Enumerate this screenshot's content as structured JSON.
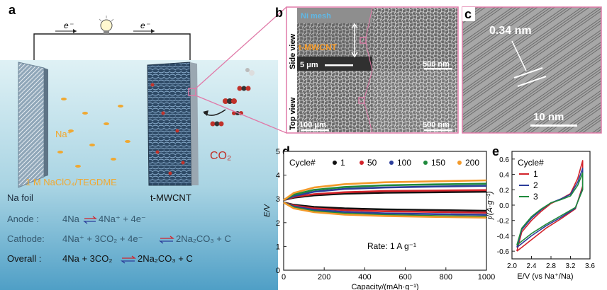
{
  "panel_a": {
    "letter": "a",
    "electron_left": "e⁻",
    "electron_right": "e⁻",
    "na_ion": "Na⁺",
    "co2": "CO₂",
    "electrolyte": "1 M NaClO₄/TEGDME",
    "na_foil": "Na foil",
    "cathode_label": "t-MWCNT",
    "eq_anode_prefix": "Anode   :",
    "eq_anode_left": "4Na",
    "eq_anode_right": "4Na⁺ + 4e⁻",
    "eq_cathode_prefix": "Cathode:",
    "eq_cathode_left": "4Na⁺ + 3CO₂ + 4e⁻",
    "eq_cathode_right": "2Na₂CO₃ + C",
    "eq_overall_prefix": "Overall  :",
    "eq_overall_left": "4Na + 3CO₂",
    "eq_overall_right": "2Na₂CO₃ + C",
    "colors": {
      "bg_top": "#d7eef3",
      "bg_bottom": "#5aa8cc",
      "pink": "#e07aa8",
      "orange": "#f0a830",
      "co2_red": "#c0322a"
    }
  },
  "panel_b": {
    "letter": "b",
    "side_view": "Side view",
    "top_view": "Top view",
    "ni_mesh": "Ni mesh",
    "t_mwcnt": "t-MWCNT",
    "scale_side_left": "5 μm",
    "scale_side_right": "500 nm",
    "scale_top_left": "100 μm",
    "scale_top_right": "500 nm"
  },
  "panel_c": {
    "letter": "c",
    "spacing": "0.34 nm",
    "scale": "10 nm"
  },
  "chart_data": [
    {
      "type": "line",
      "panel": "d",
      "xlabel": "Capacity/(mAh·g⁻¹)",
      "ylabel": "E/V",
      "xlim": [
        0,
        1000
      ],
      "ylim": [
        0,
        5
      ],
      "xticks": [
        0,
        200,
        400,
        600,
        800,
        1000
      ],
      "yticks": [
        0,
        1,
        2,
        3,
        4,
        5
      ],
      "legend_title": "Cycle#",
      "legend_placement": "top",
      "annotation": "Rate: 1 A g⁻¹",
      "series": [
        {
          "name": "1",
          "color": "#111111",
          "charge": [
            [
              0,
              2.95
            ],
            [
              50,
              3.05
            ],
            [
              150,
              3.15
            ],
            [
              300,
              3.22
            ],
            [
              500,
              3.26
            ],
            [
              750,
              3.28
            ],
            [
              1000,
              3.3
            ]
          ],
          "discharge": [
            [
              0,
              2.85
            ],
            [
              50,
              2.75
            ],
            [
              150,
              2.66
            ],
            [
              300,
              2.6
            ],
            [
              500,
              2.56
            ],
            [
              750,
              2.53
            ],
            [
              1000,
              2.5
            ]
          ]
        },
        {
          "name": "50",
          "color": "#d2232a",
          "charge": [
            [
              0,
              2.95
            ],
            [
              50,
              3.08
            ],
            [
              150,
              3.2
            ],
            [
              300,
              3.28
            ],
            [
              500,
              3.33
            ],
            [
              750,
              3.35
            ],
            [
              1000,
              3.37
            ]
          ],
          "discharge": [
            [
              0,
              2.85
            ],
            [
              50,
              2.72
            ],
            [
              150,
              2.6
            ],
            [
              300,
              2.53
            ],
            [
              500,
              2.48
            ],
            [
              750,
              2.45
            ],
            [
              1000,
              2.42
            ]
          ]
        },
        {
          "name": "100",
          "color": "#2b3d9a",
          "charge": [
            [
              0,
              2.95
            ],
            [
              50,
              3.12
            ],
            [
              150,
              3.3
            ],
            [
              300,
              3.42
            ],
            [
              500,
              3.48
            ],
            [
              750,
              3.52
            ],
            [
              1000,
              3.55
            ]
          ],
          "discharge": [
            [
              0,
              2.85
            ],
            [
              50,
              2.68
            ],
            [
              150,
              2.54
            ],
            [
              300,
              2.45
            ],
            [
              500,
              2.39
            ],
            [
              750,
              2.36
            ],
            [
              1000,
              2.33
            ]
          ]
        },
        {
          "name": "150",
          "color": "#1f8a3c",
          "charge": [
            [
              0,
              2.95
            ],
            [
              50,
              3.18
            ],
            [
              150,
              3.38
            ],
            [
              300,
              3.5
            ],
            [
              500,
              3.57
            ],
            [
              750,
              3.61
            ],
            [
              1000,
              3.64
            ]
          ],
          "discharge": [
            [
              0,
              2.85
            ],
            [
              50,
              2.64
            ],
            [
              150,
              2.48
            ],
            [
              300,
              2.38
            ],
            [
              500,
              2.32
            ],
            [
              750,
              2.28
            ],
            [
              1000,
              2.25
            ]
          ]
        },
        {
          "name": "200",
          "color": "#f39a2a",
          "charge": [
            [
              0,
              2.95
            ],
            [
              50,
              3.25
            ],
            [
              150,
              3.48
            ],
            [
              300,
              3.62
            ],
            [
              500,
              3.7
            ],
            [
              750,
              3.74
            ],
            [
              1000,
              3.78
            ]
          ],
          "discharge": [
            [
              0,
              2.85
            ],
            [
              50,
              2.6
            ],
            [
              150,
              2.44
            ],
            [
              300,
              2.34
            ],
            [
              500,
              2.28
            ],
            [
              750,
              2.24
            ],
            [
              1000,
              2.21
            ]
          ]
        }
      ]
    },
    {
      "type": "line",
      "panel": "e",
      "xlabel": "E/V (vs Na⁺/Na)",
      "ylabel": "j/(A·g⁻¹)",
      "xlim": [
        2.0,
        3.6
      ],
      "ylim": [
        -0.7,
        0.7
      ],
      "xticks": [
        2.0,
        2.4,
        2.8,
        3.2,
        3.6
      ],
      "yticks": [
        -0.6,
        -0.4,
        -0.2,
        0.0,
        0.2,
        0.4,
        0.6
      ],
      "legend_title": "Cycle#",
      "series": [
        {
          "name": "1",
          "color": "#d2232a",
          "points": [
            [
              2.1,
              -0.6
            ],
            [
              2.2,
              -0.35
            ],
            [
              2.4,
              -0.2
            ],
            [
              2.6,
              -0.08
            ],
            [
              2.8,
              0.02
            ],
            [
              3.0,
              0.08
            ],
            [
              3.2,
              0.15
            ],
            [
              3.35,
              0.35
            ],
            [
              3.45,
              0.58
            ],
            [
              3.45,
              0.25
            ],
            [
              3.3,
              -0.05
            ],
            [
              3.0,
              -0.18
            ],
            [
              2.7,
              -0.3
            ],
            [
              2.4,
              -0.45
            ],
            [
              2.2,
              -0.55
            ],
            [
              2.1,
              -0.6
            ]
          ]
        },
        {
          "name": "2",
          "color": "#2b3d9a",
          "points": [
            [
              2.1,
              -0.55
            ],
            [
              2.2,
              -0.32
            ],
            [
              2.4,
              -0.17
            ],
            [
              2.6,
              -0.06
            ],
            [
              2.8,
              0.03
            ],
            [
              3.0,
              0.08
            ],
            [
              3.2,
              0.14
            ],
            [
              3.35,
              0.3
            ],
            [
              3.45,
              0.48
            ],
            [
              3.45,
              0.22
            ],
            [
              3.3,
              -0.04
            ],
            [
              3.0,
              -0.16
            ],
            [
              2.7,
              -0.27
            ],
            [
              2.4,
              -0.4
            ],
            [
              2.2,
              -0.5
            ],
            [
              2.1,
              -0.55
            ]
          ]
        },
        {
          "name": "3",
          "color": "#1f8a3c",
          "points": [
            [
              2.1,
              -0.52
            ],
            [
              2.2,
              -0.3
            ],
            [
              2.4,
              -0.15
            ],
            [
              2.6,
              -0.05
            ],
            [
              2.8,
              0.03
            ],
            [
              3.0,
              0.07
            ],
            [
              3.2,
              0.12
            ],
            [
              3.35,
              0.26
            ],
            [
              3.45,
              0.42
            ],
            [
              3.45,
              0.2
            ],
            [
              3.3,
              -0.03
            ],
            [
              3.0,
              -0.14
            ],
            [
              2.7,
              -0.25
            ],
            [
              2.4,
              -0.37
            ],
            [
              2.2,
              -0.47
            ],
            [
              2.1,
              -0.52
            ]
          ]
        }
      ]
    }
  ]
}
